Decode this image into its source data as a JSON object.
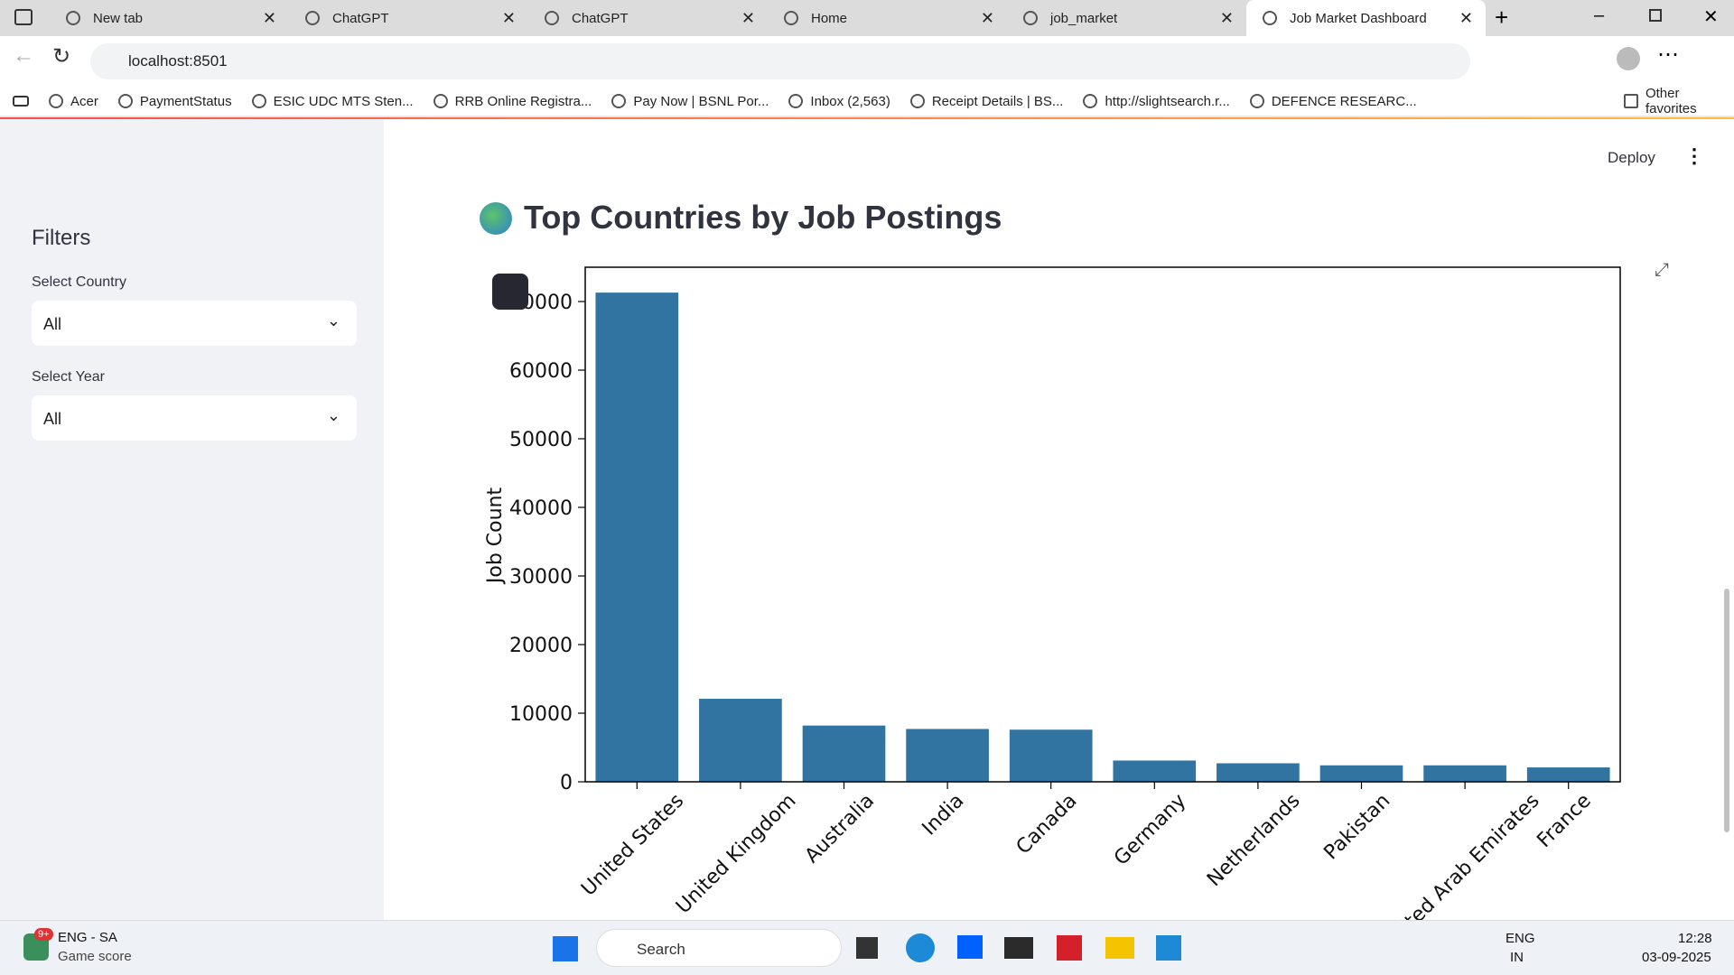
{
  "browser": {
    "tabs": [
      "New tab",
      "ChatGPT",
      "ChatGPT",
      "Home",
      "job_market",
      "Job Market Dashboard"
    ],
    "url": "localhost:8501",
    "bookmarks": [
      "Acer",
      "PaymentStatus",
      "ESIC UDC MTS Sten...",
      "RRB Online Registra...",
      "Pay Now | BSNL Por...",
      "Inbox (2,563)",
      "Receipt Details | BS...",
      "http://slightsearch.r...",
      "DEFENCE RESEARC..."
    ],
    "other_favorites": "Other favorites"
  },
  "app": {
    "deploy": "Deploy",
    "sidebar": {
      "title": "Filters",
      "country_label": "Select Country",
      "country_value": "All",
      "year_label": "Select Year",
      "year_value": "All"
    }
  },
  "chart_data": {
    "type": "bar",
    "title": "Top Countries by Job Postings",
    "y_label": "Job Count",
    "categories": [
      "United States",
      "United Kingdom",
      "Australia",
      "India",
      "Canada",
      "Germany",
      "Netherlands",
      "Pakistan",
      "United Arab Emirates",
      "France"
    ],
    "values": [
      71300,
      12100,
      8200,
      7700,
      7600,
      3100,
      2700,
      2400,
      2400,
      2100
    ],
    "color": "#3274a1",
    "ylim": [
      0,
      75000
    ],
    "yticks": [
      0,
      10000,
      20000,
      30000,
      40000,
      50000,
      60000,
      70000
    ]
  },
  "taskbar": {
    "badge": "9+",
    "news": "ENG - SA",
    "news_sub": "Game score",
    "search": "Search",
    "lang": "ENG",
    "region": "IN",
    "time": "12:28",
    "date": "03-09-2025"
  }
}
